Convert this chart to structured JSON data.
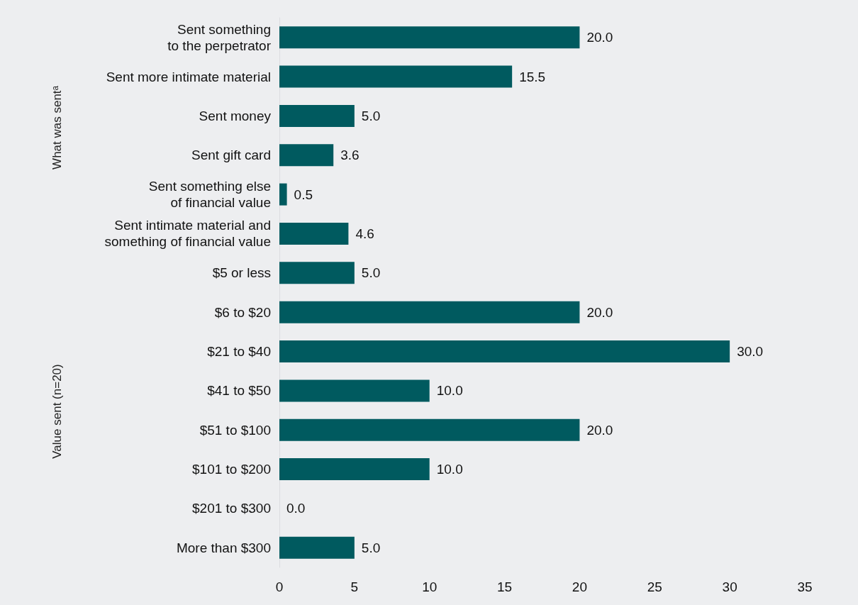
{
  "chart_data": {
    "type": "bar",
    "orientation": "horizontal",
    "categories": [
      "Sent something\nto the perpetrator",
      "Sent more intimate material",
      "Sent money",
      "Sent gift card",
      "Sent something else\nof financial value",
      "Sent intimate material and\nsomething of financial value",
      "$5 or less",
      "$6 to $20",
      "$21 to $40",
      "$41 to $50",
      "$51 to $100",
      "$101 to $200",
      "$201 to $300",
      "More than $300"
    ],
    "values": [
      20.0,
      15.5,
      5.0,
      3.6,
      0.5,
      4.6,
      5.0,
      20.0,
      30.0,
      10.0,
      20.0,
      10.0,
      0.0,
      5.0
    ],
    "value_labels": [
      "20.0",
      "15.5",
      "5.0",
      "3.6",
      "0.5",
      "4.6",
      "5.0",
      "20.0",
      "30.0",
      "10.0",
      "20.0",
      "10.0",
      "0.0",
      "5.0"
    ],
    "color": "#005a5f",
    "xlim": [
      0,
      35
    ],
    "xticks": [
      0,
      5,
      10,
      15,
      20,
      25,
      30,
      35
    ],
    "annotations": [
      "What was sentᵃ",
      "Value sent (n=20)"
    ],
    "grid": false
  }
}
